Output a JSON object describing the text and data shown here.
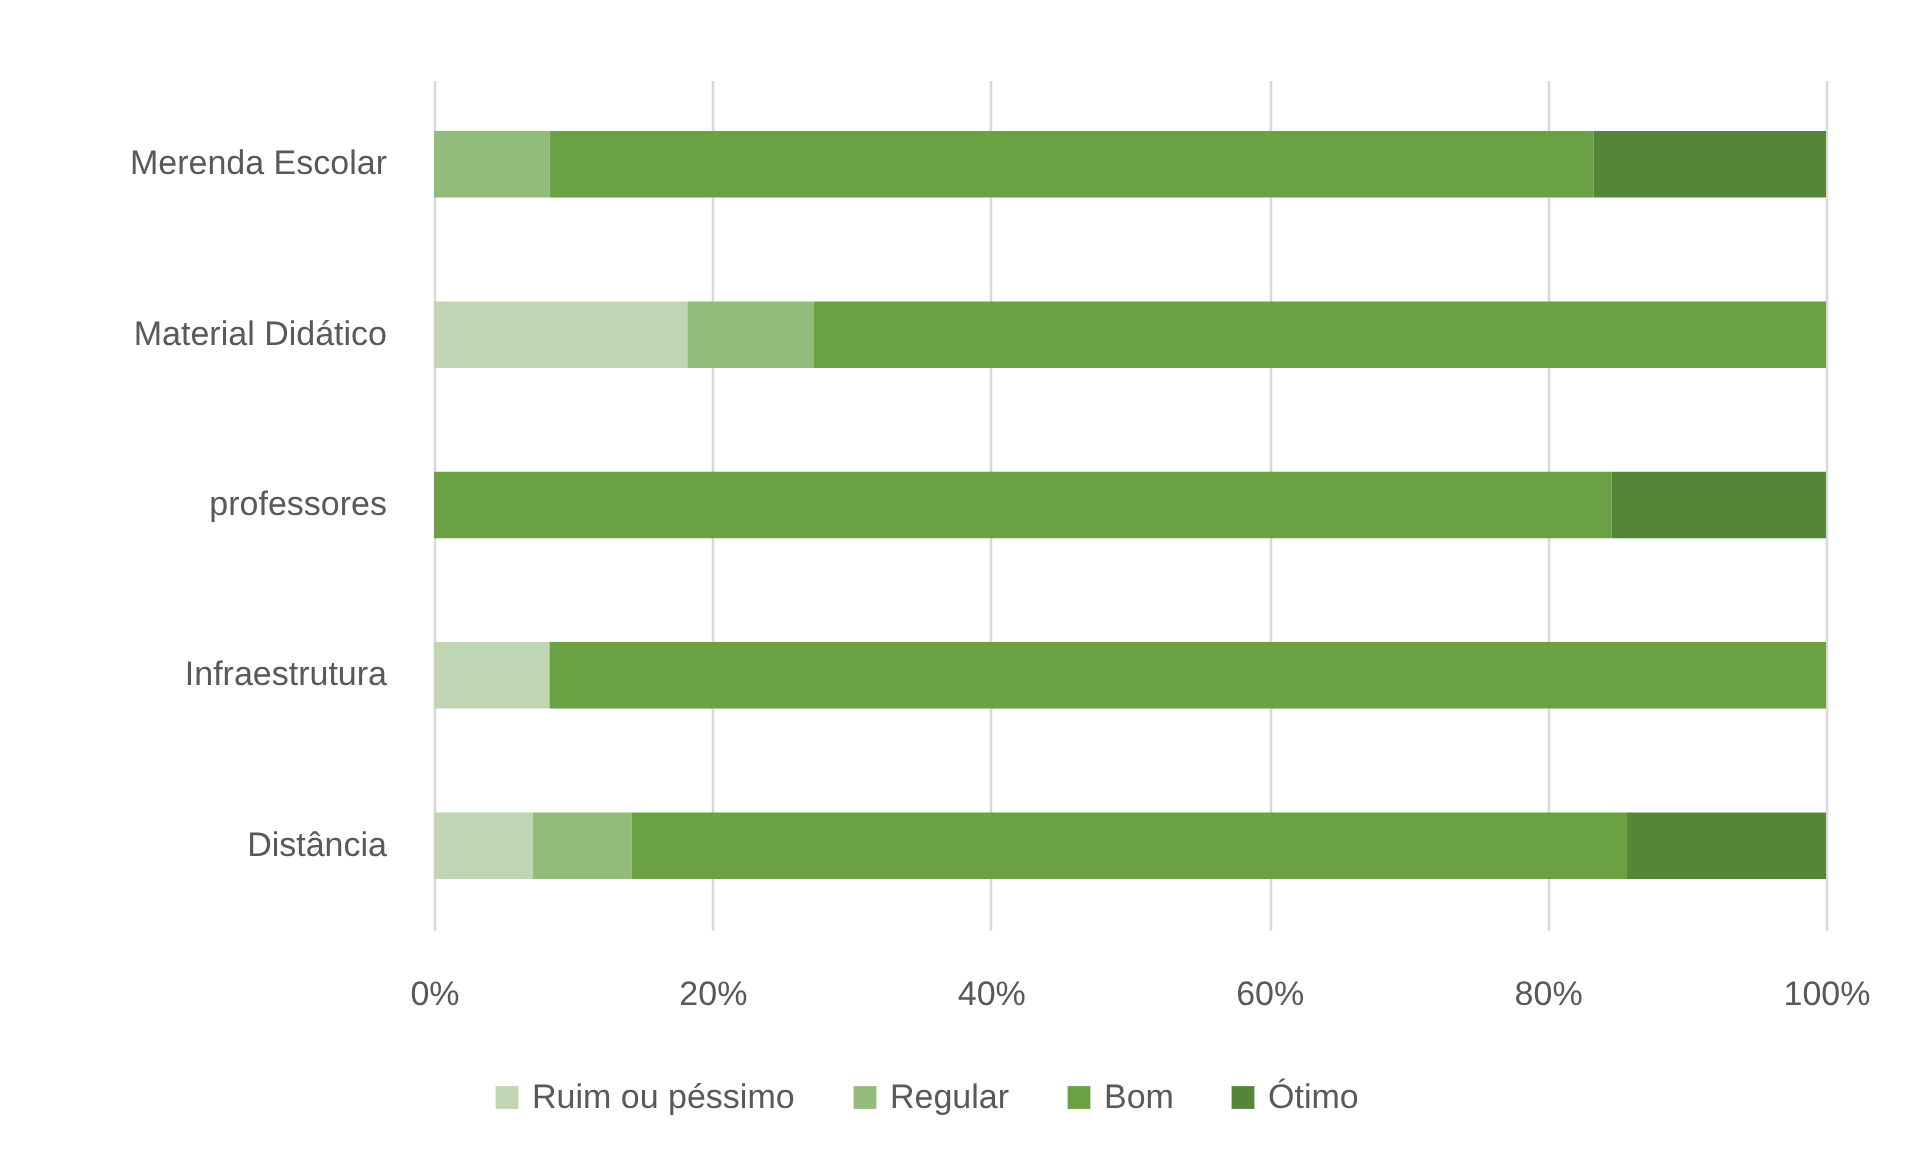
{
  "chart_data": {
    "type": "bar",
    "orientation": "horizontal",
    "stacked": true,
    "categories": [
      "Merenda Escolar",
      "Material Didático",
      "professores",
      "Infraestrutura",
      "Distância"
    ],
    "series": [
      {
        "name": "Ruim ou péssimo",
        "color": "#c0d5b2",
        "values": [
          null,
          18.2,
          null,
          8.3,
          7.1
        ]
      },
      {
        "name": "Regular",
        "color": "#93bb7b",
        "values": [
          8.3,
          9.1,
          null,
          null,
          7.1
        ]
      },
      {
        "name": "Bom",
        "color": "#6aa142",
        "values": [
          75.0,
          72.7,
          84.6,
          91.7,
          71.5
        ]
      },
      {
        "name": "Ótimo",
        "color": "#558637",
        "values": [
          16.7,
          null,
          15.4,
          null,
          14.3
        ]
      }
    ],
    "xlim": [
      0,
      100
    ],
    "xticks": [
      {
        "value": 0,
        "label": "0%"
      },
      {
        "value": 20,
        "label": "20%"
      },
      {
        "value": 40,
        "label": "40%"
      },
      {
        "value": 60,
        "label": "60%"
      },
      {
        "value": 80,
        "label": "80%"
      },
      {
        "value": 100,
        "label": "100%"
      }
    ],
    "grid": "x",
    "legend": "bottom"
  }
}
